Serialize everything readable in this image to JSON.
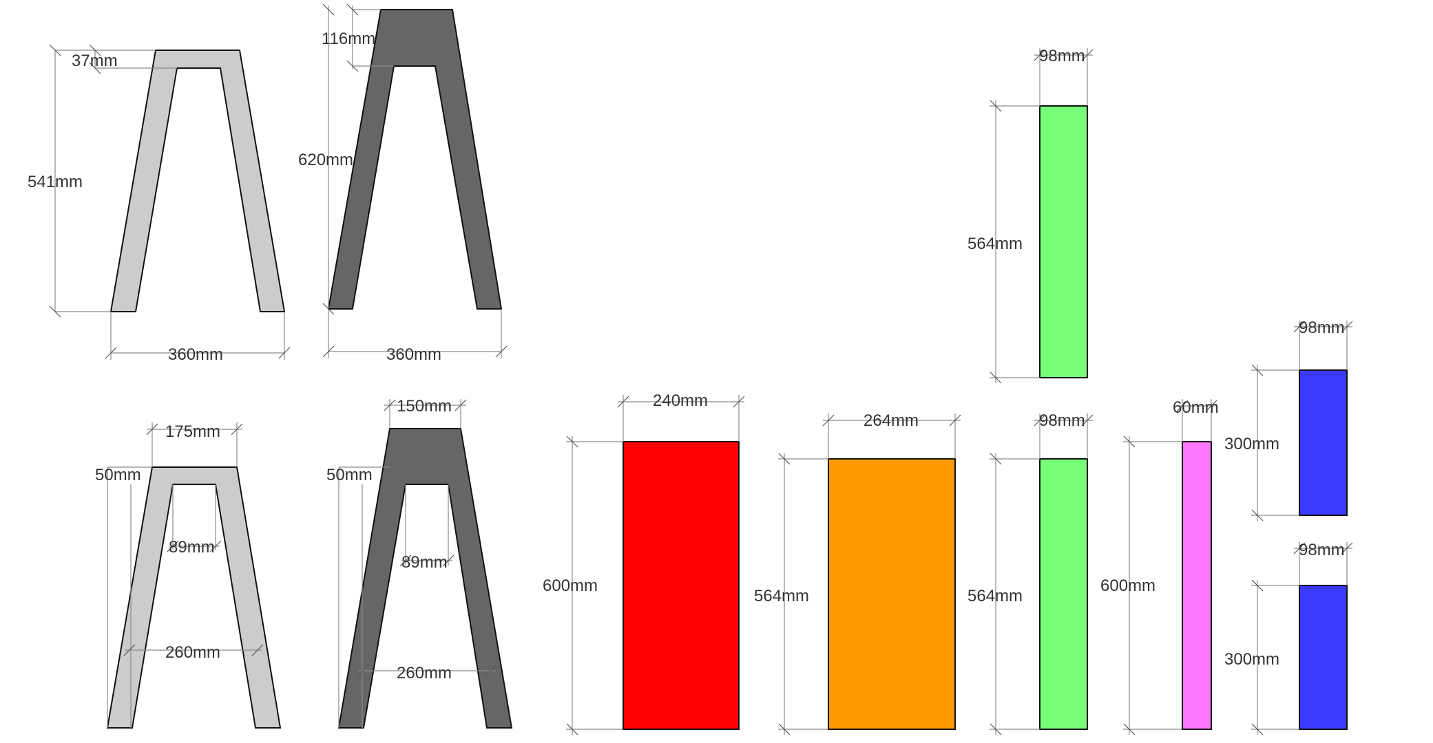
{
  "colors": {
    "frame_light": "#cccccc",
    "frame_dark": "#666666",
    "panel_red": "#ff0000",
    "panel_orange": "#ff9900",
    "panel_green": "#77ff77",
    "panel_pink": "#ff77ff",
    "panel_blue": "#3b3bff",
    "dimension_line": "#8a8a8a",
    "outline": "#111111"
  },
  "frames": {
    "top_light": {
      "height": "541mm",
      "bar": "37mm",
      "width": "360mm"
    },
    "top_dark": {
      "bar": "116mm",
      "height": "620mm",
      "width": "360mm"
    },
    "bottom_light": {
      "top_width": "175mm",
      "bar": "50mm",
      "gap": "89mm",
      "inner_width": "260mm"
    },
    "bottom_dark": {
      "top_width": "150mm",
      "bar": "50mm",
      "gap": "89mm",
      "inner_width": "260mm"
    }
  },
  "panels": {
    "red": {
      "width": "240mm",
      "height": "600mm"
    },
    "orange": {
      "width": "264mm",
      "height": "564mm"
    },
    "green_top": {
      "width": "98mm",
      "height": "564mm"
    },
    "green_bottom": {
      "width": "98mm",
      "height": "564mm"
    },
    "pink": {
      "width": "60mm",
      "height": "600mm"
    },
    "blue_top": {
      "width": "98mm",
      "height": "300mm"
    },
    "blue_bottom": {
      "width": "98mm",
      "height": "300mm"
    }
  }
}
